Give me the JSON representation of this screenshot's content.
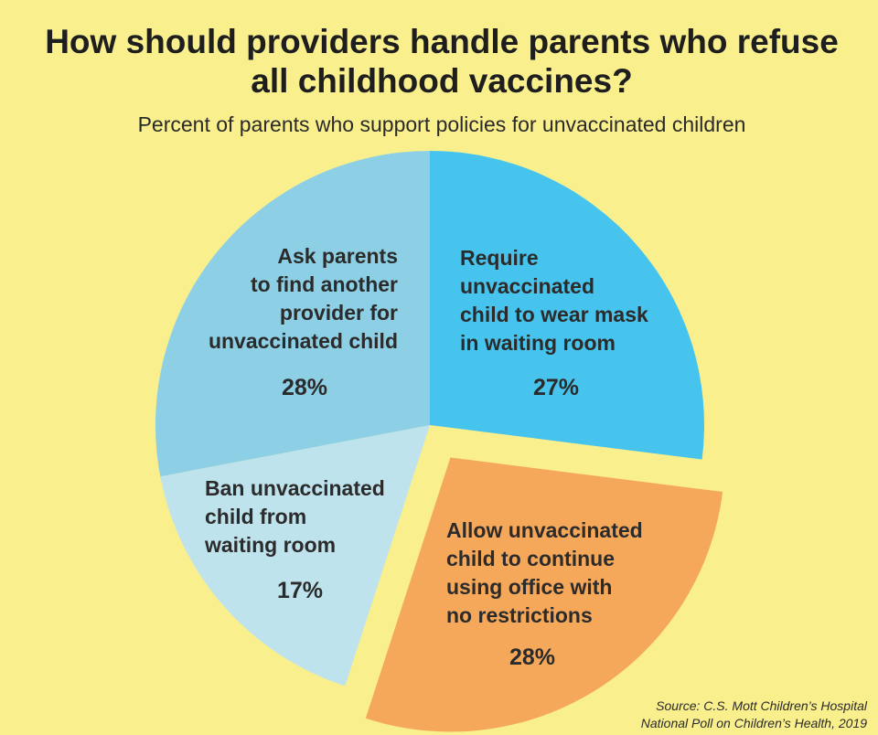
{
  "title_line1": "How should providers handle parents who refuse",
  "title_line2": "all childhood vaccines?",
  "subtitle": "Percent of parents who support policies for unvaccinated children",
  "source_line1": "Source: C.S. Mott Children’s Hospital",
  "source_line2": "National Poll on Children’s Health, 2019",
  "chart_data": {
    "type": "pie",
    "title": "How should providers handle parents who refuse all childhood vaccines?",
    "subtitle": "Percent of parents who support policies for unvaccinated children",
    "slices": [
      {
        "label_lines": [
          "Require",
          "unvaccinated",
          "child to wear mask",
          "in waiting room"
        ],
        "value": 27,
        "value_label": "27%",
        "color": "#47c4ee"
      },
      {
        "label_lines": [
          "Allow unvaccinated",
          "child to continue",
          "using office with",
          "no restrictions"
        ],
        "value": 28,
        "value_label": "28%",
        "color": "#f6a85a",
        "exploded": true
      },
      {
        "label_lines": [
          "Ban unvaccinated",
          "child from",
          "waiting room"
        ],
        "value": 17,
        "value_label": "17%",
        "color": "#bfe3ec"
      },
      {
        "label_lines": [
          "Ask parents",
          "to find another",
          "provider for",
          "unvaccinated child"
        ],
        "value": 28,
        "value_label": "28%",
        "color": "#8dd0e6"
      }
    ],
    "start_angle": "12 o'clock",
    "direction": "clockwise"
  }
}
